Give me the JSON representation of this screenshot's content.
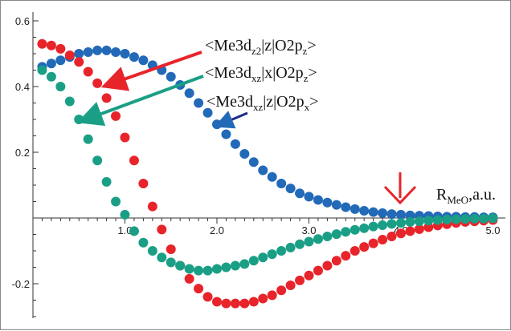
{
  "chart_data": {
    "type": "scatter",
    "xlim": [
      0,
      5.1
    ],
    "ylim": [
      -0.32,
      0.62
    ],
    "x_ticks": [
      {
        "value": 1.0,
        "label": "1.0"
      },
      {
        "value": 2.0,
        "label": "2.0"
      },
      {
        "value": 3.0,
        "label": "3.0"
      },
      {
        "value": 4.0,
        "label": "4.0"
      },
      {
        "value": 5.0,
        "label": "5.0"
      }
    ],
    "y_ticks": [
      {
        "value": 0.6,
        "label": "0.6"
      },
      {
        "value": 0.4,
        "label": "0.4"
      },
      {
        "value": 0.2,
        "label": "0.2"
      },
      {
        "value": -0.2,
        "label": "-0.2"
      }
    ],
    "axis_label": {
      "main": "R",
      "sub": "MeO",
      "suffix": ",a.u."
    },
    "series": [
      {
        "color": "#2269b8",
        "label": {
          "pre": "<Me3d",
          "sub": "xz",
          "post": "|z|O2p",
          "sub2": "x",
          "end": ">"
        },
        "points": [
          [
            0.1,
            0.46
          ],
          [
            0.2,
            0.47
          ],
          [
            0.3,
            0.48
          ],
          [
            0.4,
            0.49
          ],
          [
            0.5,
            0.5
          ],
          [
            0.6,
            0.505
          ],
          [
            0.7,
            0.51
          ],
          [
            0.8,
            0.51
          ],
          [
            0.9,
            0.505
          ],
          [
            1.0,
            0.5
          ],
          [
            1.1,
            0.49
          ],
          [
            1.2,
            0.48
          ],
          [
            1.3,
            0.465
          ],
          [
            1.4,
            0.45
          ],
          [
            1.5,
            0.43
          ],
          [
            1.6,
            0.405
          ],
          [
            1.7,
            0.38
          ],
          [
            1.8,
            0.35
          ],
          [
            1.9,
            0.32
          ],
          [
            2.0,
            0.285
          ],
          [
            2.1,
            0.255
          ],
          [
            2.2,
            0.225
          ],
          [
            2.3,
            0.195
          ],
          [
            2.4,
            0.17
          ],
          [
            2.5,
            0.145
          ],
          [
            2.6,
            0.125
          ],
          [
            2.7,
            0.105
          ],
          [
            2.8,
            0.09
          ],
          [
            2.9,
            0.075
          ],
          [
            3.0,
            0.065
          ],
          [
            3.1,
            0.055
          ],
          [
            3.2,
            0.047
          ],
          [
            3.3,
            0.04
          ],
          [
            3.4,
            0.033
          ],
          [
            3.5,
            0.027
          ],
          [
            3.6,
            0.022
          ],
          [
            3.7,
            0.018
          ],
          [
            3.8,
            0.015
          ],
          [
            3.9,
            0.012
          ],
          [
            4.0,
            0.01
          ],
          [
            4.1,
            0.008
          ],
          [
            4.2,
            0.007
          ],
          [
            4.3,
            0.006
          ],
          [
            4.4,
            0.005
          ],
          [
            4.5,
            0.004
          ],
          [
            4.6,
            0.004
          ],
          [
            4.7,
            0.003
          ],
          [
            4.8,
            0.003
          ],
          [
            4.9,
            0.002
          ],
          [
            5.0,
            0.002
          ]
        ]
      },
      {
        "color": "#e8242b",
        "label": {
          "pre": "<Me3d",
          "sub": "z2",
          "post": "|z|O2p",
          "sub2": "z",
          "end": ">"
        },
        "points": [
          [
            0.1,
            0.53
          ],
          [
            0.2,
            0.525
          ],
          [
            0.3,
            0.515
          ],
          [
            0.4,
            0.495
          ],
          [
            0.5,
            0.475
          ],
          [
            0.6,
            0.445
          ],
          [
            0.7,
            0.41
          ],
          [
            0.8,
            0.365
          ],
          [
            0.9,
            0.31
          ],
          [
            1.0,
            0.245
          ],
          [
            1.1,
            0.175
          ],
          [
            1.2,
            0.105
          ],
          [
            1.3,
            0.035
          ],
          [
            1.4,
            -0.035
          ],
          [
            1.5,
            -0.095
          ],
          [
            1.6,
            -0.145
          ],
          [
            1.7,
            -0.185
          ],
          [
            1.8,
            -0.215
          ],
          [
            1.9,
            -0.24
          ],
          [
            2.0,
            -0.255
          ],
          [
            2.1,
            -0.26
          ],
          [
            2.2,
            -0.26
          ],
          [
            2.3,
            -0.26
          ],
          [
            2.4,
            -0.255
          ],
          [
            2.5,
            -0.245
          ],
          [
            2.6,
            -0.235
          ],
          [
            2.7,
            -0.22
          ],
          [
            2.8,
            -0.205
          ],
          [
            2.9,
            -0.19
          ],
          [
            3.0,
            -0.175
          ],
          [
            3.1,
            -0.16
          ],
          [
            3.2,
            -0.145
          ],
          [
            3.3,
            -0.13
          ],
          [
            3.4,
            -0.115
          ],
          [
            3.5,
            -0.1
          ],
          [
            3.6,
            -0.088
          ],
          [
            3.7,
            -0.077
          ],
          [
            3.8,
            -0.066
          ],
          [
            3.9,
            -0.056
          ],
          [
            4.0,
            -0.047
          ],
          [
            4.1,
            -0.04
          ],
          [
            4.2,
            -0.034
          ],
          [
            4.3,
            -0.028
          ],
          [
            4.4,
            -0.023
          ],
          [
            4.5,
            -0.019
          ],
          [
            4.6,
            -0.015
          ],
          [
            4.7,
            -0.012
          ],
          [
            4.8,
            -0.01
          ],
          [
            4.9,
            -0.008
          ],
          [
            5.0,
            -0.006
          ]
        ]
      },
      {
        "color": "#1a9f86",
        "label": {
          "pre": "<Me3d",
          "sub": "xz",
          "post": "|x|O2p",
          "sub2": "z",
          "end": ">"
        },
        "points": [
          [
            0.1,
            0.45
          ],
          [
            0.2,
            0.43
          ],
          [
            0.3,
            0.4
          ],
          [
            0.4,
            0.355
          ],
          [
            0.5,
            0.3
          ],
          [
            0.6,
            0.24
          ],
          [
            0.7,
            0.175
          ],
          [
            0.8,
            0.11
          ],
          [
            0.9,
            0.05
          ],
          [
            1.0,
            0.01
          ],
          [
            1.1,
            -0.04
          ],
          [
            1.2,
            -0.075
          ],
          [
            1.3,
            -0.1
          ],
          [
            1.4,
            -0.12
          ],
          [
            1.5,
            -0.135
          ],
          [
            1.6,
            -0.145
          ],
          [
            1.7,
            -0.155
          ],
          [
            1.8,
            -0.16
          ],
          [
            1.9,
            -0.16
          ],
          [
            2.0,
            -0.155
          ],
          [
            2.1,
            -0.15
          ],
          [
            2.2,
            -0.145
          ],
          [
            2.3,
            -0.14
          ],
          [
            2.4,
            -0.13
          ],
          [
            2.5,
            -0.12
          ],
          [
            2.6,
            -0.11
          ],
          [
            2.7,
            -0.1
          ],
          [
            2.8,
            -0.09
          ],
          [
            2.9,
            -0.08
          ],
          [
            3.0,
            -0.072
          ],
          [
            3.1,
            -0.064
          ],
          [
            3.2,
            -0.056
          ],
          [
            3.3,
            -0.049
          ],
          [
            3.4,
            -0.042
          ],
          [
            3.5,
            -0.036
          ],
          [
            3.6,
            -0.031
          ],
          [
            3.7,
            -0.026
          ],
          [
            3.8,
            -0.022
          ],
          [
            3.9,
            -0.018
          ],
          [
            4.0,
            -0.015
          ],
          [
            4.1,
            -0.012
          ],
          [
            4.2,
            -0.01
          ],
          [
            4.3,
            -0.008
          ],
          [
            4.4,
            -0.006
          ],
          [
            4.5,
            -0.005
          ],
          [
            4.6,
            -0.004
          ],
          [
            4.7,
            -0.003
          ],
          [
            4.8,
            -0.002
          ],
          [
            4.9,
            -0.002
          ],
          [
            5.0,
            -0.001
          ]
        ]
      }
    ]
  }
}
